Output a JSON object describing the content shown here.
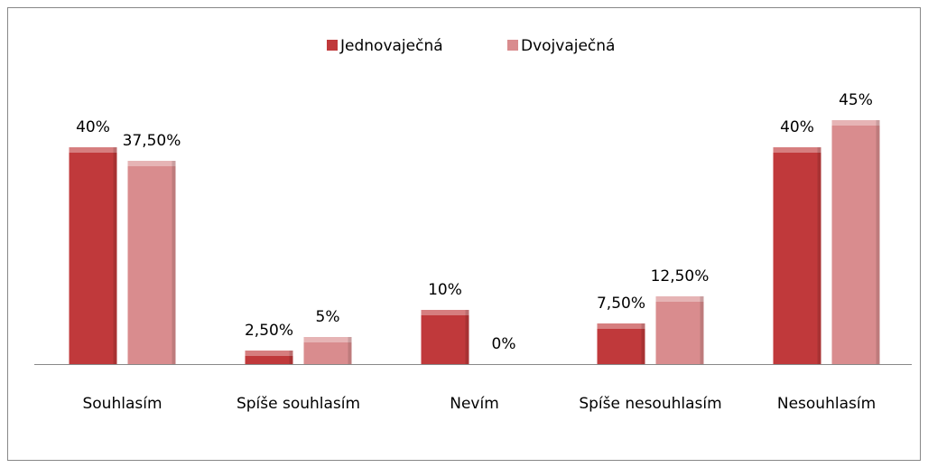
{
  "chart_data": {
    "type": "bar",
    "categories": [
      "Souhlasím",
      "Spíše souhlasím",
      "Nevím",
      "Spíše nesouhlasím",
      "Nesouhlasím"
    ],
    "series": [
      {
        "name": "Jednovaječná",
        "color": "#c0393b",
        "values": [
          40,
          2.5,
          10,
          7.5,
          40
        ],
        "value_labels": [
          "40%",
          "2,50%",
          "10%",
          "7,50%",
          "40%"
        ]
      },
      {
        "name": "Dvojvaječná",
        "color": "#d98c8e",
        "values": [
          37.5,
          5,
          0,
          12.5,
          45
        ],
        "value_labels": [
          "37,50%",
          "5%",
          "0%",
          "12,50%",
          "45%"
        ]
      }
    ],
    "legend": "top"
  }
}
